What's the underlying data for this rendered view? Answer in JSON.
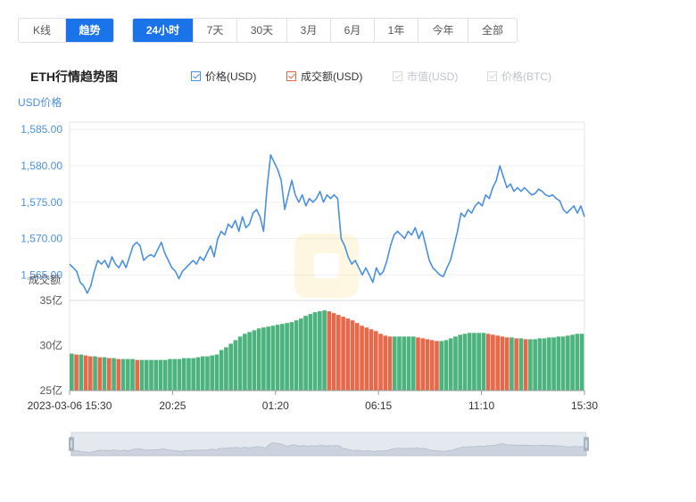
{
  "tabs_type": [
    {
      "label": "K线",
      "active": false
    },
    {
      "label": "趋势",
      "active": true
    }
  ],
  "tabs_range": [
    {
      "label": "24小时",
      "active": true
    },
    {
      "label": "7天",
      "active": false
    },
    {
      "label": "30天",
      "active": false
    },
    {
      "label": "3月",
      "active": false
    },
    {
      "label": "6月",
      "active": false
    },
    {
      "label": "1年",
      "active": false
    },
    {
      "label": "今年",
      "active": false
    },
    {
      "label": "全部",
      "active": false
    }
  ],
  "chart_title": "ETH行情趋势图",
  "legend": [
    {
      "label": "价格(USD)",
      "checked": true,
      "enabled": true,
      "color": "#4a90e2"
    },
    {
      "label": "成交额(USD)",
      "checked": true,
      "enabled": true,
      "color": "#e8684a"
    },
    {
      "label": "市值(USD)",
      "checked": true,
      "enabled": false,
      "color": "#d9d9d9"
    },
    {
      "label": "价格(BTC)",
      "checked": true,
      "enabled": false,
      "color": "#d9d9d9"
    }
  ],
  "chart_data": {
    "type": "line",
    "ylabel": "USD价格",
    "volume_label": "成交额",
    "x_ticks": [
      "2023-03-06 15:30",
      "20:25",
      "01:20",
      "06:15",
      "11:10",
      "15:30"
    ],
    "price": {
      "ylim": [
        1561.5,
        1586
      ],
      "y_ticks": [
        "1,585.00",
        "1,580.00",
        "1,575.00",
        "1,570.00",
        "1,565.00"
      ],
      "y_tick_values": [
        1585,
        1580,
        1575,
        1570,
        1565
      ],
      "color": "#4a90e2",
      "values": [
        1566.5,
        1566,
        1565.5,
        1564,
        1563.5,
        1562.5,
        1563.5,
        1565.5,
        1567,
        1566.5,
        1567,
        1566,
        1567.5,
        1566.5,
        1566,
        1567,
        1566,
        1567.5,
        1569,
        1569.5,
        1569,
        1567,
        1567.5,
        1567.8,
        1567.5,
        1568.5,
        1569.5,
        1568,
        1567,
        1566,
        1565.5,
        1564.5,
        1565.5,
        1566,
        1566.5,
        1567,
        1566.5,
        1567.5,
        1567,
        1568,
        1569,
        1567.5,
        1570,
        1571,
        1570.5,
        1572,
        1571.5,
        1572.5,
        1571,
        1573,
        1571.5,
        1572,
        1573.5,
        1574,
        1573,
        1571,
        1577,
        1581.5,
        1580.5,
        1579.5,
        1578,
        1574,
        1576,
        1578,
        1576,
        1575,
        1576,
        1574.5,
        1575.5,
        1575,
        1575.5,
        1576.5,
        1575,
        1576,
        1575.5,
        1576,
        1575.5,
        1570,
        1569,
        1567.5,
        1566.5,
        1567,
        1566,
        1565,
        1566,
        1565,
        1564,
        1566,
        1565,
        1565.5,
        1567,
        1569,
        1570.5,
        1571,
        1570.5,
        1570,
        1571,
        1570.5,
        1571.5,
        1570,
        1571,
        1569,
        1567,
        1566,
        1565.5,
        1565,
        1564.8,
        1566,
        1567,
        1569,
        1571,
        1573.5,
        1573,
        1574,
        1573.5,
        1574.5,
        1575,
        1574.5,
        1576,
        1575.5,
        1577,
        1578,
        1580,
        1578.5,
        1577,
        1577.5,
        1576.5,
        1577,
        1576.5,
        1577,
        1576.5,
        1576,
        1576.2,
        1576.8,
        1576.5,
        1576,
        1575.8,
        1576,
        1575.5,
        1575.2,
        1574,
        1573.5,
        1574,
        1574.5,
        1573.5,
        1574.5,
        1573
      ]
    },
    "volume": {
      "ylim": [
        25,
        35
      ],
      "unit": "亿",
      "y_ticks": [
        "35亿",
        "30亿",
        "25亿"
      ],
      "y_tick_values": [
        35,
        30,
        25
      ],
      "colors": {
        "up": "#4db37e",
        "down": "#e8684a"
      },
      "values": [
        29.1,
        29,
        29,
        28.9,
        28.8,
        28.8,
        28.7,
        28.7,
        28.6,
        28.6,
        28.5,
        28.5,
        28.5,
        28.5,
        28.4,
        28.4,
        28.4,
        28.4,
        28.4,
        28.4,
        28.4,
        28.5,
        28.5,
        28.5,
        28.6,
        28.6,
        28.6,
        28.7,
        28.8,
        28.8,
        28.9,
        29,
        29.5,
        29.8,
        30.2,
        30.6,
        31,
        31.3,
        31.5,
        31.7,
        31.9,
        32,
        32.1,
        32.2,
        32.3,
        32.4,
        32.5,
        32.6,
        32.8,
        33,
        33.3,
        33.5,
        33.7,
        33.8,
        33.9,
        33.8,
        33.6,
        33.4,
        33.2,
        33,
        32.8,
        32.5,
        32.2,
        32,
        31.8,
        31.6,
        31.3,
        31.1,
        31,
        31,
        31,
        31,
        31,
        31,
        30.9,
        30.8,
        30.7,
        30.6,
        30.5,
        30.5,
        30.6,
        30.8,
        31,
        31.2,
        31.3,
        31.4,
        31.4,
        31.4,
        31.4,
        31.3,
        31.2,
        31.1,
        31,
        30.9,
        30.9,
        30.8,
        30.8,
        30.7,
        30.7,
        30.7,
        30.8,
        30.8,
        30.9,
        30.9,
        31,
        31,
        31.1,
        31.2,
        31.3,
        31.3
      ]
    }
  }
}
